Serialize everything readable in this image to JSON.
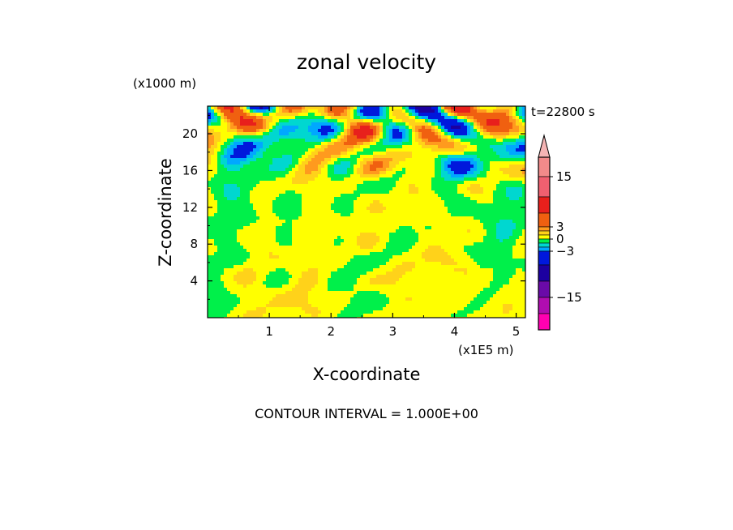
{
  "chart_data": {
    "type": "heatmap",
    "title": "zonal velocity",
    "time_label": "t=22800 s",
    "xlabel": "X-coordinate",
    "ylabel": "Z-coordinate",
    "x_unit": "(x1E5 m)",
    "y_unit": "(x1000 m)",
    "x_ticks": [
      "1",
      "2",
      "3",
      "4",
      "5"
    ],
    "y_ticks": [
      "4",
      "8",
      "12",
      "16",
      "20"
    ],
    "xlim": [
      0.0,
      5.15
    ],
    "ylim": [
      0.0,
      23.0
    ],
    "footer": "CONTOUR INTERVAL = 1.000E+00",
    "colorbar": {
      "labels": [
        "15",
        "3",
        "0",
        "-3",
        "-15"
      ],
      "label_values": [
        15,
        3,
        0,
        -3,
        -15
      ],
      "bands": [
        {
          "range": "> 21",
          "color": "#f4b4b4"
        },
        {
          "range": "15 to 21",
          "color": "#f28a8a"
        },
        {
          "range": "9 to 15",
          "color": "#f06070"
        },
        {
          "range": "5 to 9",
          "color": "#e8201c"
        },
        {
          "range": "3 to 5",
          "color": "#f06010"
        },
        {
          "range": "2 to 3",
          "color": "#ff9a1e"
        },
        {
          "range": "1 to 2",
          "color": "#ffd21a"
        },
        {
          "range": "0 to 1",
          "color": "#ffff00"
        },
        {
          "range": "-1 to 0",
          "color": "#00f04a"
        },
        {
          "range": "-2 to -1",
          "color": "#00d7d0"
        },
        {
          "range": "-3 to -2",
          "color": "#00a8ff"
        },
        {
          "range": "-5 to -3",
          "color": "#0018dc"
        },
        {
          "range": "-9 to -5",
          "color": "#1c00a0"
        },
        {
          "range": "-15 to -9",
          "color": "#6a0aa8"
        },
        {
          "range": "-21 to -15",
          "color": "#b00db0"
        },
        {
          "range": "< -21",
          "color": "#ff00b0"
        }
      ]
    }
  }
}
